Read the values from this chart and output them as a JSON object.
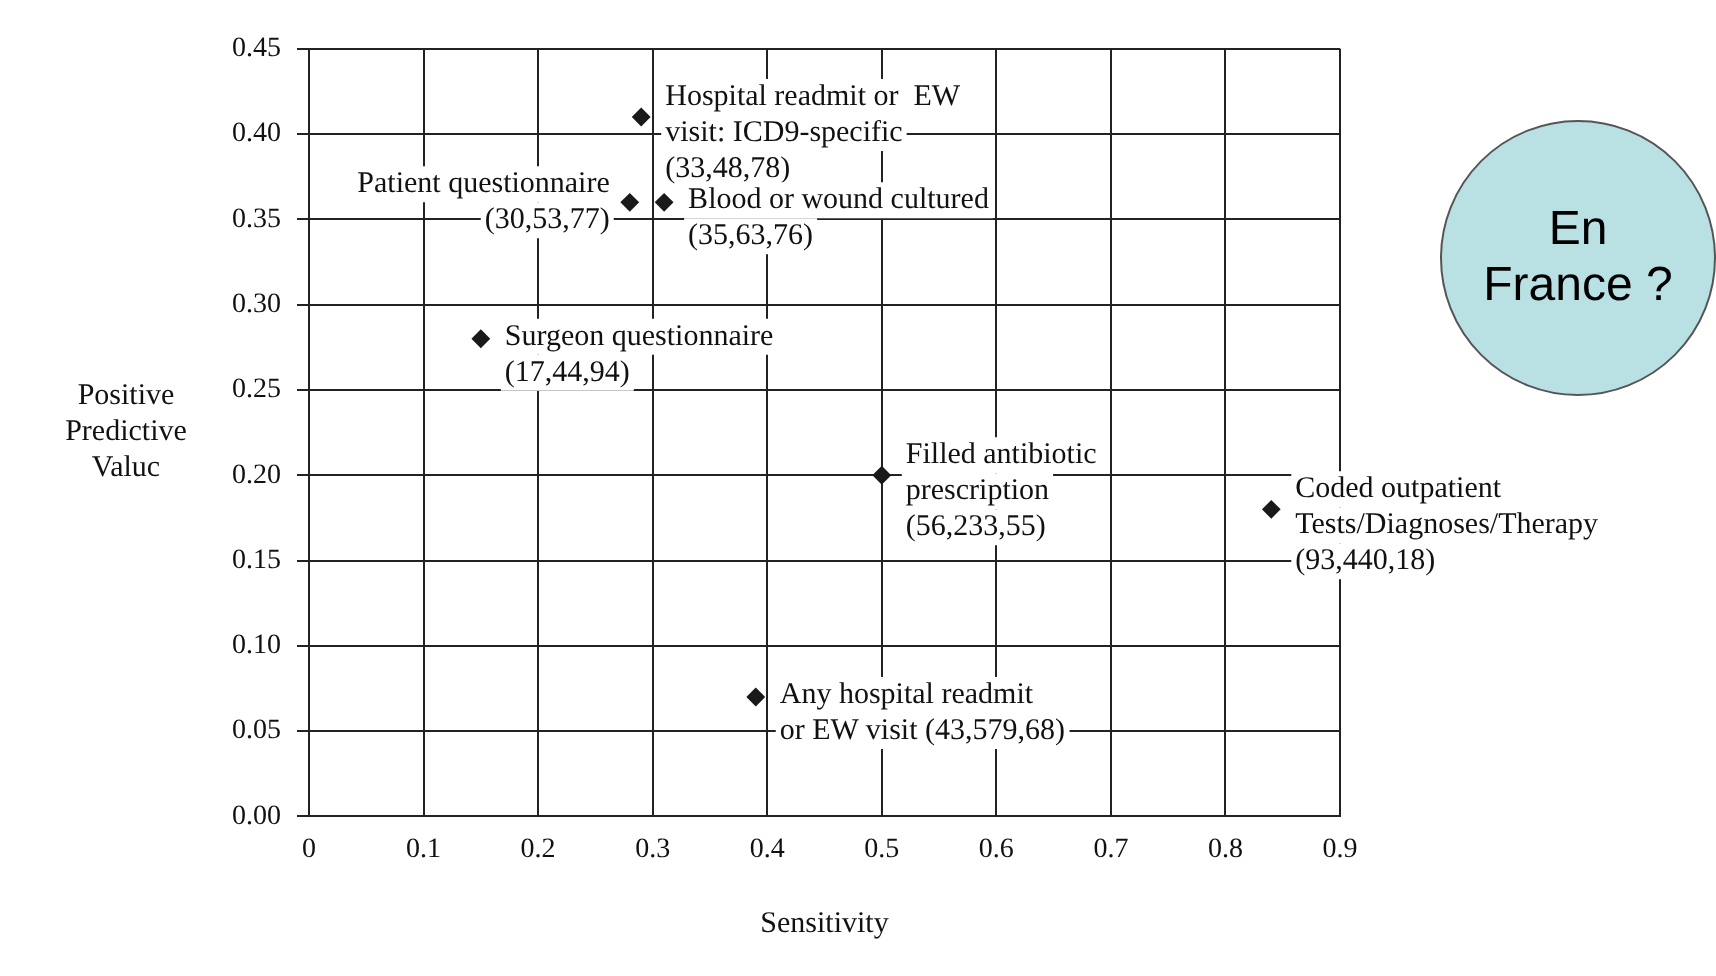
{
  "chart_data": {
    "type": "scatter",
    "xlabel": "Sensitivity",
    "ylabel": "Positive Predictive Valuc",
    "x": [
      0.29,
      0.28,
      0.31,
      0.15,
      0.5,
      0.84,
      0.39
    ],
    "values": [
      0.41,
      0.36,
      0.36,
      0.28,
      0.2,
      0.18,
      0.07
    ],
    "color": "#1a1a1a",
    "marker": "diamond",
    "xlim": [
      0,
      0.9
    ],
    "xticks": [
      0,
      0.1,
      0.2,
      0.3,
      0.4,
      0.5,
      0.6,
      0.7,
      0.8,
      0.9
    ],
    "ylim": [
      0,
      0.45
    ],
    "yticks": [
      {
        "value": 0,
        "label": "0.00"
      },
      {
        "value": 0.05,
        "label": "0.05"
      },
      {
        "value": 0.1,
        "label": "0.10"
      },
      {
        "value": 0.15,
        "label": "0.15"
      },
      {
        "value": 0.2,
        "label": "0.20"
      },
      {
        "value": 0.25,
        "label": "0.25"
      },
      {
        "value": 0.3,
        "label": "0.30"
      },
      {
        "value": 0.35,
        "label": "0.35"
      },
      {
        "value": 0.4,
        "label": "0.40"
      },
      {
        "value": 0.45,
        "label": "0.45"
      }
    ],
    "grid": true,
    "annotations": [
      {
        "text": "Hospital readmit or  EW\nvisit: ICD9-specific\n(33,48,78)",
        "x": 0.29,
        "y": 0.41
      },
      {
        "text": "Patient questionnaire\n(30,53,77)",
        "x": 0.28,
        "y": 0.36
      },
      {
        "text": "Blood or wound cultured\n(35,63,76)",
        "x": 0.31,
        "y": 0.36
      },
      {
        "text": "Surgeon questionnaire\n(17,44,94)",
        "x": 0.15,
        "y": 0.28
      },
      {
        "text": "Filled antibiotic\nprescription\n(56,233,55)",
        "x": 0.5,
        "y": 0.2
      },
      {
        "text": "Coded outpatient\nTests/Diagnoses/Therapy\n(93,440,18)",
        "x": 0.84,
        "y": 0.18
      },
      {
        "text": "Any hospital readmit\nor EW visit (43,579,68)",
        "x": 0.39,
        "y": 0.07
      },
      "En\nFrance ?"
    ]
  }
}
